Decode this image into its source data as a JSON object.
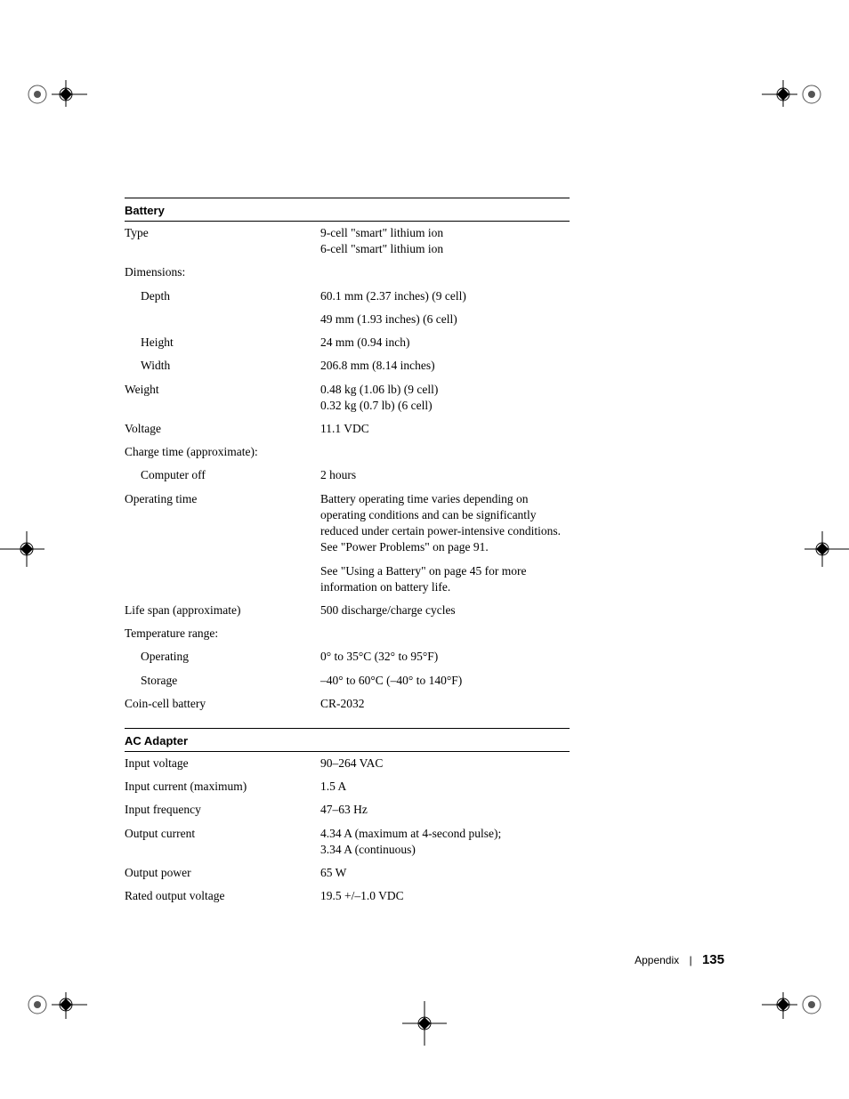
{
  "battery": {
    "heading": "Battery",
    "rows": [
      {
        "label": "Type",
        "value": "9-cell \"smart\" lithium ion\n6-cell \"smart\" lithium ion"
      },
      {
        "label": "Dimensions:",
        "value": ""
      },
      {
        "label": "Depth",
        "indent": true,
        "value": "60.1 mm (2.37 inches) (9 cell)"
      },
      {
        "label": "",
        "value": "49 mm (1.93 inches) (6 cell)"
      },
      {
        "label": "Height",
        "indent": true,
        "value": "24 mm (0.94 inch)"
      },
      {
        "label": "Width",
        "indent": true,
        "value": "206.8 mm (8.14 inches)"
      },
      {
        "label": "Weight",
        "value": "0.48 kg (1.06 lb) (9 cell)\n0.32 kg (0.7 lb) (6 cell)"
      },
      {
        "label": "Voltage",
        "value": "11.1 VDC"
      },
      {
        "label": "Charge time (approximate):",
        "value": ""
      },
      {
        "label": "Computer off",
        "indent": true,
        "value": "2 hours"
      },
      {
        "label": "Operating time",
        "value": "Battery operating time varies depending on operating conditions and can be significantly reduced under certain power-intensive conditions. See \"Power Problems\" on page 91."
      },
      {
        "label": "",
        "value": "See \"Using a Battery\" on page 45 for more information on battery life."
      },
      {
        "label": "Life span (approximate)",
        "value": "500 discharge/charge cycles"
      },
      {
        "label": "Temperature range:",
        "value": ""
      },
      {
        "label": "Operating",
        "indent": true,
        "value": "0° to 35°C (32° to 95°F)"
      },
      {
        "label": "Storage",
        "indent": true,
        "value": "–40° to 60°C (–40° to 140°F)"
      },
      {
        "label": "Coin-cell battery",
        "value": "CR-2032"
      }
    ]
  },
  "ac_adapter": {
    "heading": "AC Adapter",
    "rows": [
      {
        "label": "Input voltage",
        "value": "90–264 VAC"
      },
      {
        "label": "Input current (maximum)",
        "value": "1.5 A"
      },
      {
        "label": "Input frequency",
        "value": "47–63 Hz"
      },
      {
        "label": "Output current",
        "value": "4.34 A (maximum at 4-second pulse);\n3.34 A (continuous)"
      },
      {
        "label": "Output power",
        "value": "65 W"
      },
      {
        "label": "Rated output voltage",
        "value": "19.5 +/–1.0 VDC"
      }
    ]
  },
  "footer": {
    "section": "Appendix",
    "page": "135"
  }
}
